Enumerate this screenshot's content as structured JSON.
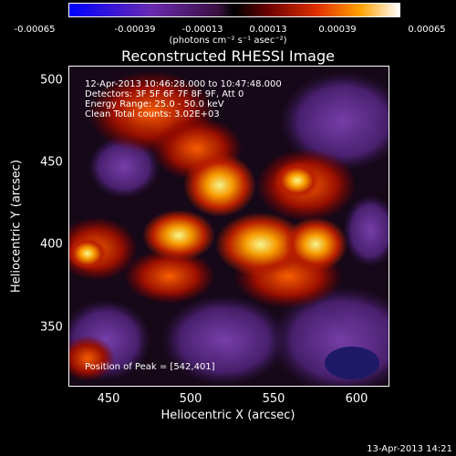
{
  "colorbar": {
    "ticks": [
      "-0.00065",
      "-0.00039",
      "-0.00013",
      "0.00013",
      "0.00039",
      "0.00065"
    ],
    "units": "(photons cm⁻² s⁻¹ asec⁻²)"
  },
  "title": "Reconstructed RHESSI Image",
  "annotations": {
    "time": "12-Apr-2013 10:46:28.000 to 10:47:48.000",
    "detectors": "Detectors: 3F 5F 6F 7F 8F 9F, Att 0",
    "energy": "Energy Range: 25.0 - 50.0 keV",
    "method": "Clean     Total counts: 3.02E+03",
    "peak": "Position of Peak = [542,401]"
  },
  "axes": {
    "xlabel": "Heliocentric X (arcsec)",
    "ylabel": "Heliocentric Y (arcsec)",
    "xticks": [
      "450",
      "500",
      "550",
      "600"
    ],
    "yticks": [
      "500",
      "450",
      "400",
      "350"
    ],
    "xlim": [
      425,
      620
    ],
    "ylim": [
      312,
      508
    ]
  },
  "timestamp": "13-Apr-2013 14:21",
  "colors": {
    "low": "#1010ff",
    "mid_low": "#703090",
    "zero": "#000000",
    "mid_high": "#c02010",
    "high": "#ff9000",
    "peak": "#ffffa0"
  }
}
